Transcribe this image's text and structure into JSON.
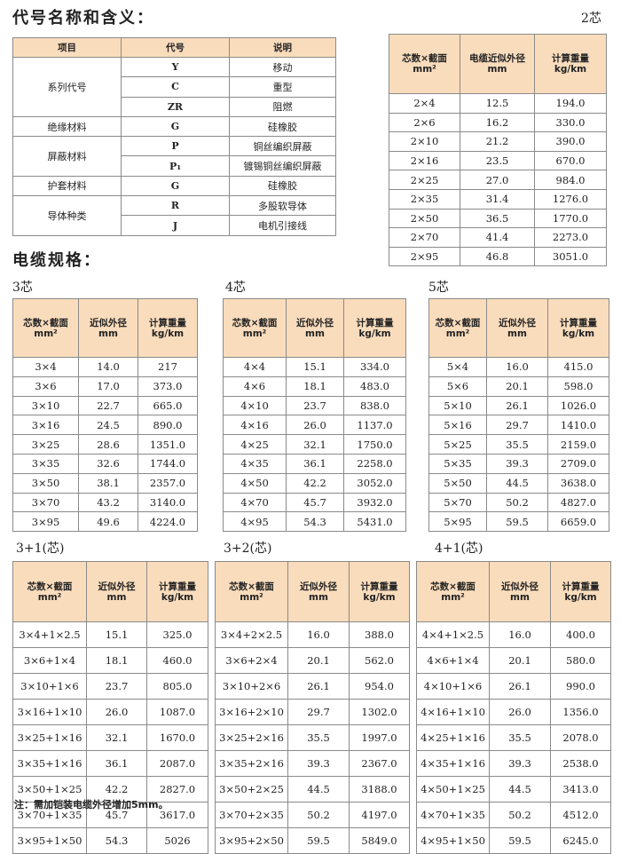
{
  "codes_section": {
    "title": "代号名称和含义：",
    "headers": [
      "项目",
      "代号",
      "说明"
    ],
    "groups": [
      {
        "item": "系列代号",
        "rows": [
          {
            "code": "Y",
            "desc": "移动"
          },
          {
            "code": "C",
            "desc": "重型"
          },
          {
            "code": "ZR",
            "desc": "阻燃"
          }
        ]
      },
      {
        "item": "绝缘材料",
        "rows": [
          {
            "code": "G",
            "desc": "硅橡胶"
          }
        ]
      },
      {
        "item": "屏蔽材料",
        "rows": [
          {
            "code": "P",
            "desc": "铜丝编织屏蔽"
          },
          {
            "code": "P₁",
            "desc": "镀锡铜丝编织屏蔽"
          }
        ]
      },
      {
        "item": "护套材料",
        "rows": [
          {
            "code": "G",
            "desc": "硅橡胶"
          }
        ]
      },
      {
        "item": "导体种类",
        "rows": [
          {
            "code": "R",
            "desc": "多股软导体"
          },
          {
            "code": "J",
            "desc": "电机引接线"
          }
        ]
      }
    ]
  },
  "spec_section": {
    "title": "电缆规格："
  },
  "header_fill_color": "#f9dcbc",
  "spec_tables": [
    {
      "label": "2芯",
      "headers": [
        [
          "芯数×截面",
          "mm²"
        ],
        [
          "电缆近似外径",
          "mm"
        ],
        [
          "计算重量",
          "kg/km"
        ]
      ],
      "rows": [
        [
          "2×4",
          "12.5",
          "194.0"
        ],
        [
          "2×6",
          "16.2",
          "330.0"
        ],
        [
          "2×10",
          "21.2",
          "390.0"
        ],
        [
          "2×16",
          "23.5",
          "670.0"
        ],
        [
          "2×25",
          "27.0",
          "984.0"
        ],
        [
          "2×35",
          "31.4",
          "1276.0"
        ],
        [
          "2×50",
          "36.5",
          "1770.0"
        ],
        [
          "2×70",
          "41.4",
          "2273.0"
        ],
        [
          "2×95",
          "46.8",
          "3051.0"
        ]
      ]
    },
    {
      "label": "3芯",
      "headers": [
        [
          "芯数×截面",
          "mm²"
        ],
        [
          "近似外径",
          "mm"
        ],
        [
          "计算重量",
          "kg/km"
        ]
      ],
      "rows": [
        [
          "3×4",
          "14.0",
          "217"
        ],
        [
          "3×6",
          "17.0",
          "373.0"
        ],
        [
          "3×10",
          "22.7",
          "665.0"
        ],
        [
          "3×16",
          "24.5",
          "890.0"
        ],
        [
          "3×25",
          "28.6",
          "1351.0"
        ],
        [
          "3×35",
          "32.6",
          "1744.0"
        ],
        [
          "3×50",
          "38.1",
          "2357.0"
        ],
        [
          "3×70",
          "43.2",
          "3140.0"
        ],
        [
          "3×95",
          "49.6",
          "4224.0"
        ]
      ]
    },
    {
      "label": "4芯",
      "headers": [
        [
          "芯数×截面",
          "mm²"
        ],
        [
          "近似外径",
          "mm"
        ],
        [
          "计算重量",
          "kg/km"
        ]
      ],
      "rows": [
        [
          "4×4",
          "15.1",
          "334.0"
        ],
        [
          "4×6",
          "18.1",
          "483.0"
        ],
        [
          "4×10",
          "23.7",
          "838.0"
        ],
        [
          "4×16",
          "26.0",
          "1137.0"
        ],
        [
          "4×25",
          "32.1",
          "1750.0"
        ],
        [
          "4×35",
          "36.1",
          "2258.0"
        ],
        [
          "4×50",
          "42.2",
          "3052.0"
        ],
        [
          "4×70",
          "45.7",
          "3932.0"
        ],
        [
          "4×95",
          "54.3",
          "5431.0"
        ]
      ]
    },
    {
      "label": "5芯",
      "headers": [
        [
          "芯数×截面",
          "mm²"
        ],
        [
          "近似外径",
          "mm"
        ],
        [
          "计算重量",
          "kg/km"
        ]
      ],
      "rows": [
        [
          "5×4",
          "16.0",
          "415.0"
        ],
        [
          "5×6",
          "20.1",
          "598.0"
        ],
        [
          "5×10",
          "26.1",
          "1026.0"
        ],
        [
          "5×16",
          "29.7",
          "1410.0"
        ],
        [
          "5×25",
          "35.5",
          "2159.0"
        ],
        [
          "5×35",
          "39.3",
          "2709.0"
        ],
        [
          "5×50",
          "44.5",
          "3638.0"
        ],
        [
          "5×70",
          "50.2",
          "4827.0"
        ],
        [
          "5×95",
          "59.5",
          "6659.0"
        ]
      ]
    },
    {
      "label": "3+1(芯)",
      "headers": [
        [
          "芯数×截面",
          "mm²"
        ],
        [
          "近似外径",
          "mm"
        ],
        [
          "计算重量",
          "kg/km"
        ]
      ],
      "rows": [
        [
          "3×4+1×2.5",
          "15.1",
          "325.0"
        ],
        [
          "3×6+1×4",
          "18.1",
          "460.0"
        ],
        [
          "3×10+1×6",
          "23.7",
          "805.0"
        ],
        [
          "3×16+1×10",
          "26.0",
          "1087.0"
        ],
        [
          "3×25+1×16",
          "32.1",
          "1670.0"
        ],
        [
          "3×35+1×16",
          "36.1",
          "2087.0"
        ],
        [
          "3×50+1×25",
          "42.2",
          "2827.0"
        ],
        [
          "3×70+1×35",
          "45.7",
          "3617.0"
        ],
        [
          "3×95+1×50",
          "54.3",
          "5026"
        ]
      ]
    },
    {
      "label": "3+2(芯)",
      "headers": [
        [
          "芯数×截面",
          "mm²"
        ],
        [
          "近似外径",
          "mm"
        ],
        [
          "计算重量",
          "kg/km"
        ]
      ],
      "rows": [
        [
          "3×4+2×2.5",
          "16.0",
          "388.0"
        ],
        [
          "3×6+2×4",
          "20.1",
          "562.0"
        ],
        [
          "3×10+2×6",
          "26.1",
          "954.0"
        ],
        [
          "3×16+2×10",
          "29.7",
          "1302.0"
        ],
        [
          "3×25+2×16",
          "35.5",
          "1997.0"
        ],
        [
          "3×35+2×16",
          "39.3",
          "2367.0"
        ],
        [
          "3×50+2×25",
          "44.5",
          "3188.0"
        ],
        [
          "3×70+2×35",
          "50.2",
          "4197.0"
        ],
        [
          "3×95+2×50",
          "59.5",
          "5849.0"
        ]
      ]
    },
    {
      "label": "4+1(芯)",
      "headers": [
        [
          "芯数×截面",
          "mm²"
        ],
        [
          "近似外径",
          "mm"
        ],
        [
          "计算重量",
          "kg/km"
        ]
      ],
      "rows": [
        [
          "4×4+1×2.5",
          "16.0",
          "400.0"
        ],
        [
          "4×6+1×4",
          "20.1",
          "580.0"
        ],
        [
          "4×10+1×6",
          "26.1",
          "990.0"
        ],
        [
          "4×16+1×10",
          "26.0",
          "1356.0"
        ],
        [
          "4×25+1×16",
          "35.5",
          "2078.0"
        ],
        [
          "4×35+1×16",
          "39.3",
          "2538.0"
        ],
        [
          "4×50+1×25",
          "44.5",
          "3413.0"
        ],
        [
          "4×70+1×35",
          "50.2",
          "4512.0"
        ],
        [
          "4×95+1×50",
          "59.5",
          "6245.0"
        ]
      ]
    }
  ],
  "note": "注：需加铠装电缆外径增加5mm。"
}
